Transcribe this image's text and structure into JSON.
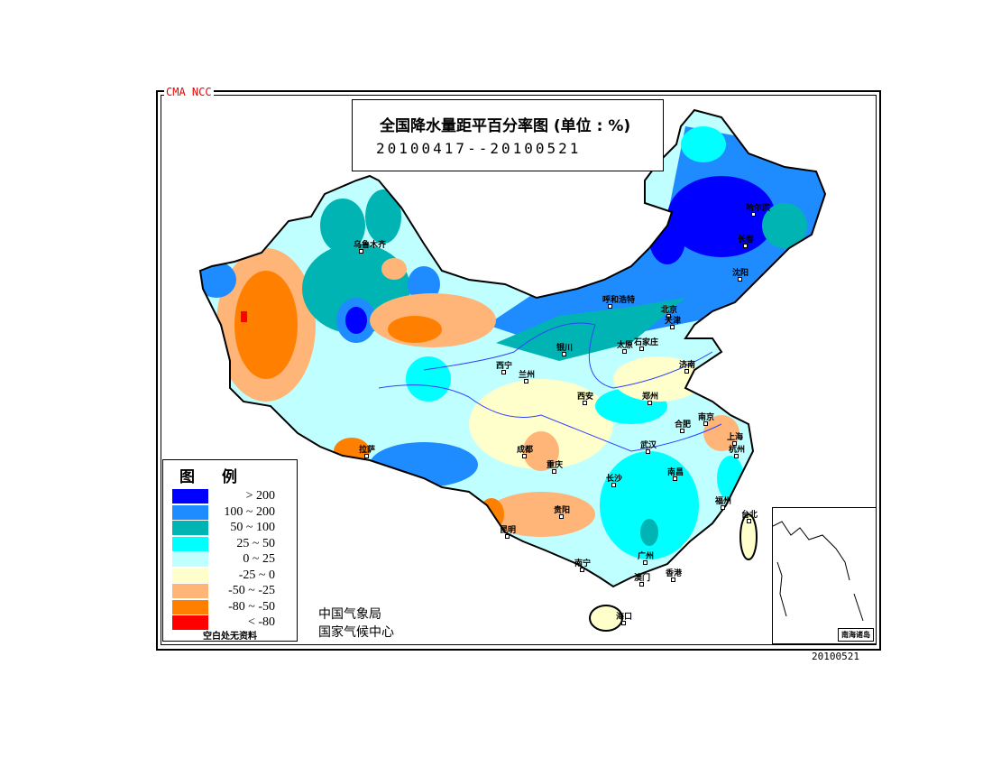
{
  "header": {
    "source": "CMA  NCC",
    "title": "全国降水量距平百分率图 (单位 : %)",
    "period": "20100417--20100521"
  },
  "legend": {
    "title": "图例",
    "items": [
      {
        "label": "> 200",
        "color": "#0000ff"
      },
      {
        "label": "100 ~ 200",
        "color": "#1e8cff"
      },
      {
        "label": "50 ~ 100",
        "color": "#00b4b4"
      },
      {
        "label": "25 ~ 50",
        "color": "#00ffff"
      },
      {
        "label": "0 ~ 25",
        "color": "#c0ffff"
      },
      {
        "label": "-25 ~ 0",
        "color": "#ffffcc"
      },
      {
        "label": "-50 ~ -25",
        "color": "#ffb478"
      },
      {
        "label": "-80 ~ -50",
        "color": "#ff8000"
      },
      {
        "label": "< -80",
        "color": "#ff0000"
      }
    ],
    "note": "空白处无资料"
  },
  "agency": {
    "line1": "中国气象局",
    "line2": "国家气候中心"
  },
  "date_stamp": "20100521",
  "inset_label": "南海诸岛",
  "cities": [
    "乌鲁木齐",
    "哈尔滨",
    "长春",
    "沈阳",
    "呼和浩特",
    "北京",
    "天津",
    "石家庄",
    "太原",
    "银川",
    "西宁",
    "兰州",
    "西安",
    "济南",
    "郑州",
    "合肥",
    "南京",
    "上海",
    "杭州",
    "武汉",
    "成都",
    "重庆",
    "拉萨",
    "贵阳",
    "昆明",
    "长沙",
    "南昌",
    "福州",
    "台北",
    "南宁",
    "广州",
    "澳门",
    "香港",
    "海口"
  ]
}
